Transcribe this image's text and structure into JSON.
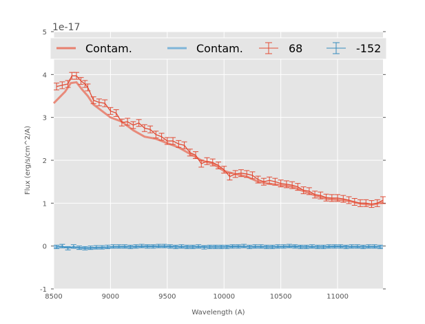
{
  "chart_data": {
    "type": "line",
    "title": "",
    "xlabel": "Wavelength (A)",
    "ylabel": "Flux (erg/s/cm^2/A)",
    "offset_label": "1e-17",
    "xlim": [
      8500,
      11400
    ],
    "ylim": [
      -1,
      5
    ],
    "xticks": [
      8500,
      9000,
      9500,
      10000,
      10500,
      11000
    ],
    "yticks": [
      -1,
      0,
      1,
      2,
      3,
      4,
      5
    ],
    "grid": true,
    "legend_placement": "top",
    "legend": [
      "Contam.",
      "Contam.",
      "68",
      "-152"
    ],
    "colors": {
      "red": "#e24a33",
      "red_contam": "#e8806e",
      "blue": "#348abd",
      "blue_contam": "#7eb5d9",
      "bg": "#e5e5e5"
    },
    "series": [
      {
        "name": "Contam.",
        "kind": "line",
        "color": "#e8806e",
        "x": [
          8500,
          8600,
          8650,
          8700,
          8750,
          8800,
          8850,
          8900,
          9000,
          9100,
          9200,
          9300,
          9400,
          9500,
          9600,
          9700,
          9800,
          9900,
          10000,
          10100,
          10200,
          10300,
          10400,
          10500,
          10600,
          10700,
          10800,
          10900,
          11000,
          11100,
          11200,
          11300,
          11400
        ],
        "y": [
          3.33,
          3.6,
          3.8,
          3.82,
          3.65,
          3.5,
          3.3,
          3.2,
          3.0,
          2.9,
          2.7,
          2.55,
          2.5,
          2.4,
          2.3,
          2.15,
          2.0,
          1.92,
          1.75,
          1.68,
          1.62,
          1.5,
          1.45,
          1.42,
          1.38,
          1.28,
          1.18,
          1.1,
          1.08,
          1.05,
          0.99,
          0.96,
          1.02
        ]
      },
      {
        "name": "Contam.",
        "kind": "line",
        "color": "#7eb5d9",
        "x": [
          8500,
          8600,
          8700,
          8800,
          8900,
          9000,
          9100,
          9200,
          9300,
          9400,
          9500,
          9600,
          9700,
          9800,
          9900,
          10000,
          10100,
          10200,
          10300,
          10400,
          10500,
          10600,
          10700,
          10800,
          10900,
          11000,
          11100,
          11200,
          11300,
          11400
        ],
        "y": [
          -0.02,
          -0.03,
          -0.04,
          -0.05,
          -0.04,
          -0.03,
          -0.02,
          -0.02,
          -0.01,
          -0.01,
          -0.01,
          -0.02,
          -0.02,
          -0.02,
          -0.02,
          -0.02,
          -0.01,
          -0.02,
          -0.02,
          -0.02,
          -0.02,
          -0.01,
          -0.02,
          -0.02,
          -0.02,
          -0.01,
          -0.02,
          -0.02,
          -0.02,
          -0.02
        ]
      },
      {
        "name": "68",
        "kind": "errorbar",
        "color": "#e24a33",
        "yerr": 0.08,
        "x": [
          8525,
          8575,
          8625,
          8660,
          8700,
          8740,
          8775,
          8800,
          8850,
          8900,
          8950,
          9000,
          9050,
          9100,
          9150,
          9200,
          9250,
          9300,
          9350,
          9400,
          9450,
          9500,
          9550,
          9600,
          9650,
          9700,
          9750,
          9800,
          9850,
          9900,
          9950,
          10000,
          10050,
          10100,
          10150,
          10200,
          10250,
          10300,
          10350,
          10400,
          10450,
          10500,
          10550,
          10600,
          10650,
          10700,
          10750,
          10800,
          10850,
          10900,
          10950,
          11000,
          11050,
          11100,
          11150,
          11200,
          11250,
          11300,
          11350,
          11400
        ],
        "y": [
          3.72,
          3.75,
          3.78,
          3.97,
          3.97,
          3.85,
          3.78,
          3.7,
          3.4,
          3.35,
          3.33,
          3.15,
          3.1,
          2.88,
          2.9,
          2.82,
          2.87,
          2.75,
          2.72,
          2.6,
          2.55,
          2.45,
          2.45,
          2.38,
          2.35,
          2.18,
          2.12,
          1.92,
          1.98,
          1.95,
          1.88,
          1.78,
          1.62,
          1.68,
          1.7,
          1.68,
          1.65,
          1.55,
          1.5,
          1.53,
          1.5,
          1.46,
          1.44,
          1.42,
          1.38,
          1.3,
          1.28,
          1.2,
          1.18,
          1.13,
          1.12,
          1.12,
          1.1,
          1.07,
          1.03,
          1.0,
          1.0,
          0.98,
          1.0,
          1.07
        ]
      },
      {
        "name": "-152",
        "kind": "errorbar",
        "color": "#348abd",
        "yerr": 0.04,
        "x": [
          8525,
          8575,
          8625,
          8675,
          8725,
          8775,
          8825,
          8875,
          8925,
          8975,
          9025,
          9075,
          9125,
          9175,
          9225,
          9275,
          9325,
          9375,
          9425,
          9475,
          9525,
          9575,
          9625,
          9675,
          9725,
          9775,
          9825,
          9875,
          9925,
          9975,
          10025,
          10075,
          10125,
          10175,
          10225,
          10275,
          10325,
          10375,
          10425,
          10475,
          10525,
          10575,
          10625,
          10675,
          10725,
          10775,
          10825,
          10875,
          10925,
          10975,
          11025,
          11075,
          11125,
          11175,
          11225,
          11275,
          11325,
          11375
        ],
        "y": [
          -0.02,
          0.0,
          -0.05,
          -0.01,
          -0.04,
          -0.05,
          -0.04,
          -0.03,
          -0.03,
          -0.02,
          -0.01,
          -0.01,
          -0.01,
          -0.02,
          -0.01,
          0.0,
          -0.01,
          -0.01,
          0.0,
          0.0,
          -0.01,
          -0.02,
          -0.01,
          -0.02,
          -0.02,
          -0.01,
          -0.03,
          -0.02,
          -0.02,
          -0.02,
          -0.02,
          -0.01,
          -0.01,
          0.0,
          -0.02,
          -0.01,
          -0.01,
          -0.02,
          -0.02,
          -0.01,
          -0.01,
          0.0,
          -0.01,
          -0.02,
          -0.02,
          -0.01,
          -0.02,
          -0.02,
          -0.01,
          -0.01,
          -0.01,
          -0.02,
          -0.01,
          -0.01,
          -0.02,
          -0.01,
          -0.01,
          -0.02
        ]
      }
    ]
  }
}
